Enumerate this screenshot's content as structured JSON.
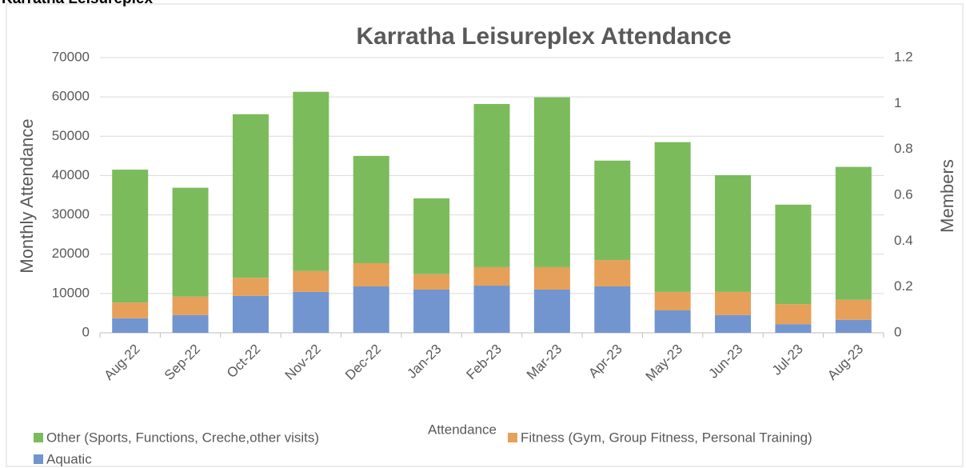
{
  "header": {
    "title": "Karratha Leisureplex"
  },
  "chart_data": {
    "type": "bar",
    "stacked": true,
    "title": "Karratha Leisureplex Attendance",
    "x_label": "Attendance",
    "y_label": "Monthly Attendance",
    "y2_label": "Members",
    "categories": [
      "Aug-22",
      "Sep-22",
      "Oct-22",
      "Nov-22",
      "Dec-22",
      "Jan-23",
      "Feb-23",
      "Mar-23",
      "Apr-23",
      "May-23",
      "Jun-23",
      "Jul-23",
      "Aug-23"
    ],
    "series": [
      {
        "name": "Aquatic",
        "color": "#7295d0",
        "values": [
          3700,
          4500,
          9400,
          10400,
          11800,
          11000,
          12000,
          11000,
          11800,
          5700,
          4500,
          2200,
          3300
        ]
      },
      {
        "name": "Fitness (Gym, Group Fitness, Personal Training)",
        "color": "#e6a05a",
        "values": [
          4000,
          4700,
          4600,
          5300,
          5900,
          3900,
          4700,
          5700,
          6700,
          4700,
          5900,
          5100,
          5100
        ]
      },
      {
        "name": "Other (Sports, Functions, Creche,other visits)",
        "color": "#7cbb5b",
        "values": [
          33800,
          27700,
          41600,
          45600,
          27300,
          19300,
          41500,
          43200,
          25300,
          38100,
          29700,
          25300,
          33800
        ]
      }
    ],
    "ylim": [
      0,
      70000
    ],
    "yticks": [
      0,
      10000,
      20000,
      30000,
      40000,
      50000,
      60000,
      70000
    ],
    "y2lim": [
      0,
      1.2
    ],
    "y2ticks": [
      0,
      0.2,
      0.4,
      0.6,
      0.8,
      1,
      1.2
    ],
    "grid": true
  }
}
